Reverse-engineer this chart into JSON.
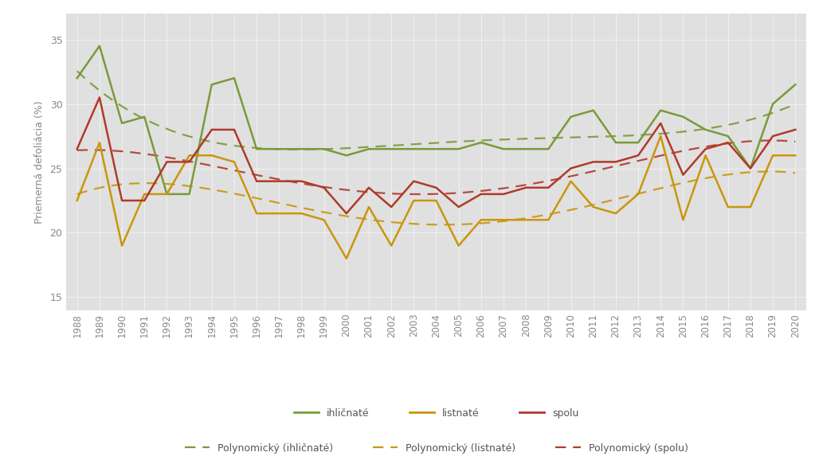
{
  "years": [
    1988,
    1989,
    1990,
    1991,
    1992,
    1993,
    1994,
    1995,
    1996,
    1997,
    1998,
    1999,
    2000,
    2001,
    2002,
    2003,
    2004,
    2005,
    2006,
    2007,
    2008,
    2009,
    2010,
    2011,
    2012,
    2013,
    2014,
    2015,
    2016,
    2017,
    2018,
    2019,
    2020
  ],
  "ihlichnate": [
    32.0,
    34.5,
    28.5,
    29.0,
    23.0,
    23.0,
    31.5,
    32.0,
    26.5,
    26.5,
    26.5,
    26.5,
    26.0,
    26.5,
    26.5,
    26.5,
    26.5,
    26.5,
    27.0,
    26.5,
    26.5,
    26.5,
    29.0,
    29.5,
    27.0,
    27.0,
    29.5,
    29.0,
    28.0,
    27.5,
    25.0,
    30.0,
    31.5
  ],
  "listнате": [
    22.5,
    27.0,
    19.0,
    23.0,
    23.0,
    26.0,
    26.0,
    25.5,
    21.5,
    21.5,
    21.5,
    21.0,
    18.0,
    22.0,
    19.0,
    22.5,
    22.5,
    19.0,
    21.0,
    21.0,
    21.0,
    21.0,
    24.0,
    22.0,
    21.5,
    23.0,
    27.5,
    21.0,
    26.0,
    22.0,
    22.0,
    26.0,
    26.0
  ],
  "spolu": [
    26.5,
    30.5,
    22.5,
    22.5,
    25.5,
    25.5,
    28.0,
    28.0,
    24.0,
    24.0,
    24.0,
    23.5,
    21.5,
    23.5,
    22.0,
    24.0,
    23.5,
    22.0,
    23.0,
    23.0,
    23.5,
    23.5,
    25.0,
    25.5,
    25.5,
    26.0,
    28.5,
    24.5,
    26.5,
    27.0,
    25.0,
    27.5,
    28.0
  ],
  "color_ihlichnate": "#7a9a3a",
  "color_listнате": "#c9960c",
  "color_spolu": "#b03a2a",
  "plot_bg": "#e0e0e0",
  "fig_bg": "#ffffff",
  "grid_color": "#f0f0f0",
  "ylabel": "Priemerná defoliácia (%)",
  "ylim": [
    14,
    37
  ],
  "yticks": [
    15,
    20,
    25,
    30,
    35
  ],
  "poly_degree": 4,
  "legend_ihlichnate": "ihličnaté",
  "legend_listнате": "listnaté",
  "legend_spolu": "spolu",
  "legend_poly_ihlichnate": "Polynomický (ihličnaté)",
  "legend_poly_listнате": "Polynomický (listnaté)",
  "legend_poly_spolu": "Polynomický (spolu)"
}
